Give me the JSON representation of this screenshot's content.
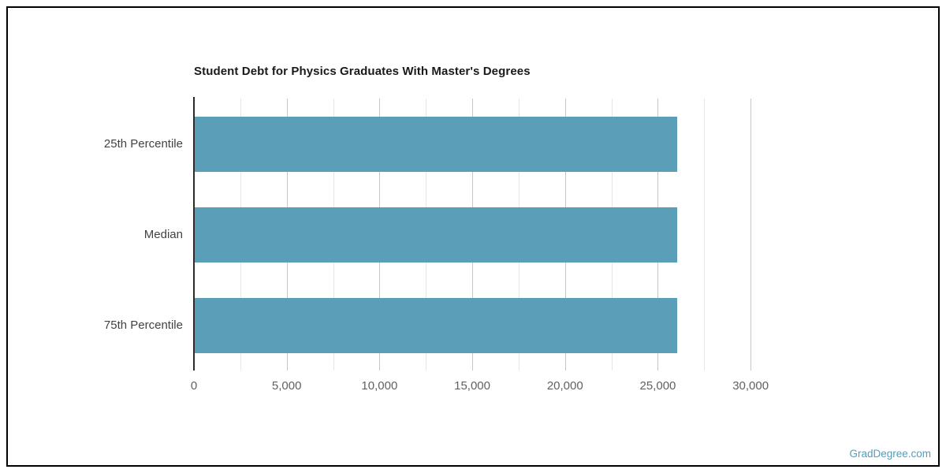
{
  "chart_data": {
    "type": "bar",
    "orientation": "horizontal",
    "title": "Student Debt for Physics Graduates With Master's Degrees",
    "categories": [
      "25th Percentile",
      "Median",
      "75th Percentile"
    ],
    "values": [
      26000,
      26000,
      26000
    ],
    "xlabel": "",
    "ylabel": "",
    "xlim": [
      0,
      32500
    ],
    "x_major_tick_step": 5000,
    "x_minor_grid_step": 2500,
    "x_grid_max": 30000,
    "x_tick_labels": [
      "0",
      "5,000",
      "10,000",
      "15,000",
      "20,000",
      "25,000",
      "30,000"
    ],
    "grid": true,
    "legend": "none",
    "bar_color": "#5b9eb8",
    "major_grid_color": "#c7c7c7",
    "minor_grid_color": "#e6e6e6",
    "axis_line_color": "#2b2b2b",
    "tick_label_color": "#616161",
    "category_label_color": "#424242",
    "title_color": "#1a1a1a"
  },
  "watermark": {
    "label": "GradDegree.com",
    "color": "#4da0c0"
  }
}
